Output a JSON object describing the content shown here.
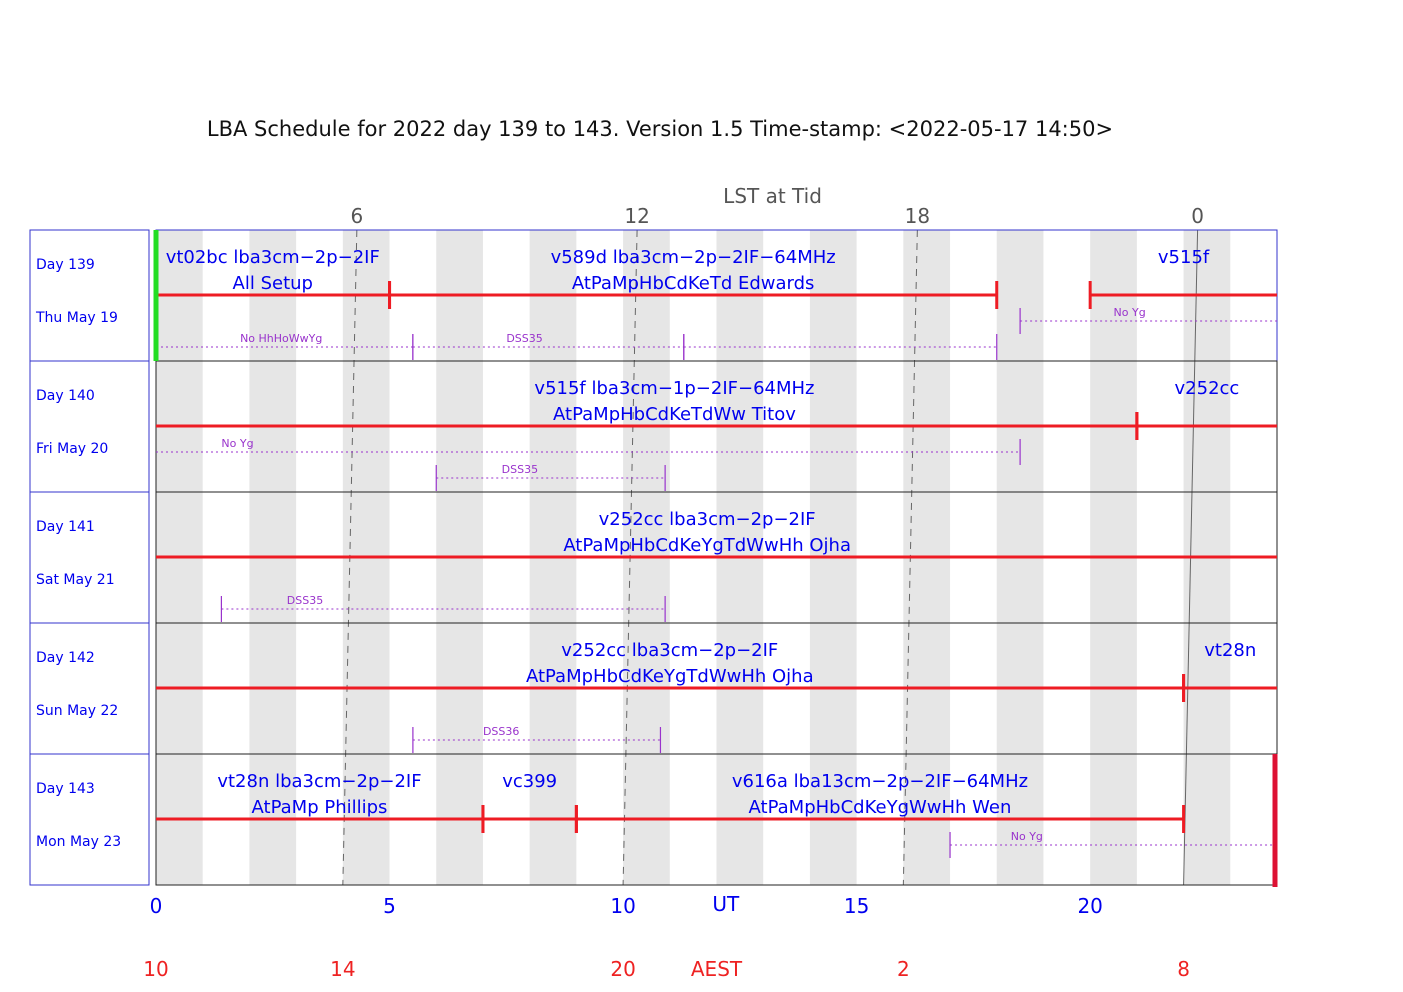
{
  "chart_data": {
    "type": "gantt",
    "title": "LBA Schedule for 2022 day 139 to 143. Version 1.5 Time-stamp: <2022-05-17 14:50>",
    "lst_axis": {
      "label": "LST at Tid",
      "ticks": [
        {
          "label": "6",
          "ut_top": 4.3,
          "ut_bottom": 4.0
        },
        {
          "label": "12",
          "ut_top": 10.3,
          "ut_bottom": 10.0
        },
        {
          "label": "18",
          "ut_top": 16.3,
          "ut_bottom": 16.0
        },
        {
          "label": "0",
          "ut_top": 22.3,
          "ut_bottom": 22.0
        }
      ]
    },
    "ut_axis": {
      "label": "UT",
      "ticks": [
        {
          "value": 0,
          "label": "0"
        },
        {
          "value": 5,
          "label": "5"
        },
        {
          "value": 10,
          "label": "10"
        },
        {
          "value": 15,
          "label": "15"
        },
        {
          "value": 20,
          "label": "20"
        }
      ],
      "range": [
        0,
        24
      ]
    },
    "aest_axis": {
      "label": "AEST",
      "label_ut": 12,
      "ticks": [
        {
          "ut": 0,
          "label": "10"
        },
        {
          "ut": 4,
          "label": "14"
        },
        {
          "ut": 10,
          "label": "20"
        },
        {
          "ut": 16,
          "label": "2"
        },
        {
          "ut": 22,
          "label": "8"
        }
      ]
    },
    "days": [
      {
        "day": "Day 139",
        "date": "Thu May 19",
        "experiments": [
          {
            "line1": "vt02bc  lba3cm−2p−2IF",
            "line2": "All Setup",
            "label_ut": 2.5,
            "start": 0,
            "end": 5
          },
          {
            "line1": "v589d  lba3cm−2p−2IF−64MHz",
            "line2": "AtPaMpHbCdKeTd  Edwards",
            "label_ut": 11.5,
            "start": 5,
            "end": 18
          },
          {
            "line1": "v515f",
            "line2": "",
            "label_ut": 22.0,
            "start": 20,
            "end": 24
          }
        ],
        "notes": [
          {
            "label": "No HhHoWwYg",
            "start": 0,
            "end": 5.5,
            "label_ut": 1.8,
            "level": 2
          },
          {
            "label": "DSS35",
            "start": 5.5,
            "end": 11.3,
            "label_ut": 7.5,
            "level": 2
          },
          {
            "label": "",
            "start": 11.3,
            "end": 18,
            "label_ut": 0,
            "level": 2
          },
          {
            "label": "No Yg",
            "start": 18.5,
            "end": 24,
            "label_ut": 20.5,
            "level": 1
          }
        ]
      },
      {
        "day": "Day 140",
        "date": "Fri May 20",
        "experiments": [
          {
            "line1": "v515f  lba3cm−1p−2IF−64MHz",
            "line2": "AtPaMpHbCdKeTdWw  Titov",
            "label_ut": 11.1,
            "start": 0,
            "end": 21
          },
          {
            "line1": "v252cc",
            "line2": "",
            "label_ut": 22.5,
            "start": 21,
            "end": 24
          }
        ],
        "notes": [
          {
            "label": "No Yg",
            "start": 0,
            "end": 18.5,
            "label_ut": 1.4,
            "level": 1
          },
          {
            "label": "DSS35",
            "start": 6.0,
            "end": 10.9,
            "label_ut": 7.4,
            "level": 2
          }
        ]
      },
      {
        "day": "Day 141",
        "date": "Sat May 21",
        "experiments": [
          {
            "line1": "v252cc  lba3cm−2p−2IF",
            "line2": "AtPaMpHbCdKeYgTdWwHh  Ojha",
            "label_ut": 11.8,
            "start": 0,
            "end": 24
          }
        ],
        "notes": [
          {
            "label": "DSS35",
            "start": 1.4,
            "end": 10.9,
            "label_ut": 2.8,
            "level": 2
          }
        ]
      },
      {
        "day": "Day 142",
        "date": "Sun May 22",
        "experiments": [
          {
            "line1": "v252cc  lba3cm−2p−2IF",
            "line2": "AtPaMpHbCdKeYgTdWwHh  Ojha",
            "label_ut": 11.0,
            "start": 0,
            "end": 22
          },
          {
            "line1": "vt28n",
            "line2": "",
            "label_ut": 23.0,
            "start": 22,
            "end": 24
          }
        ],
        "notes": [
          {
            "label": "DSS36",
            "start": 5.5,
            "end": 10.8,
            "label_ut": 7.0,
            "level": 2
          }
        ]
      },
      {
        "day": "Day 143",
        "date": "Mon May 23",
        "experiments": [
          {
            "line1": "vt28n  lba3cm−2p−2IF",
            "line2": "AtPaMp  Phillips",
            "label_ut": 3.5,
            "start": 0,
            "end": 7
          },
          {
            "line1": "vc399",
            "line2": "",
            "label_ut": 8.0,
            "start": 7,
            "end": 9
          },
          {
            "line1": "v616a  lba13cm−2p−2IF−64MHz",
            "line2": "AtPaMpHbCdKeYgWwHh  Wen",
            "label_ut": 15.5,
            "start": 9,
            "end": 22
          }
        ],
        "notes": [
          {
            "label": "No Yg",
            "start": 17.0,
            "end": 24,
            "label_ut": 18.3,
            "level": 1
          }
        ]
      }
    ],
    "colors": {
      "frame": "#3333cc",
      "experiment_bar": "#ee1c24",
      "text_blue": "#0000ee",
      "note": "#9933cc",
      "stripe": "#e6e6e6",
      "lst_line": "#666666",
      "start_marker": "#22dd22",
      "end_marker": "#dd1133",
      "aest_text": "#ee2222"
    }
  }
}
